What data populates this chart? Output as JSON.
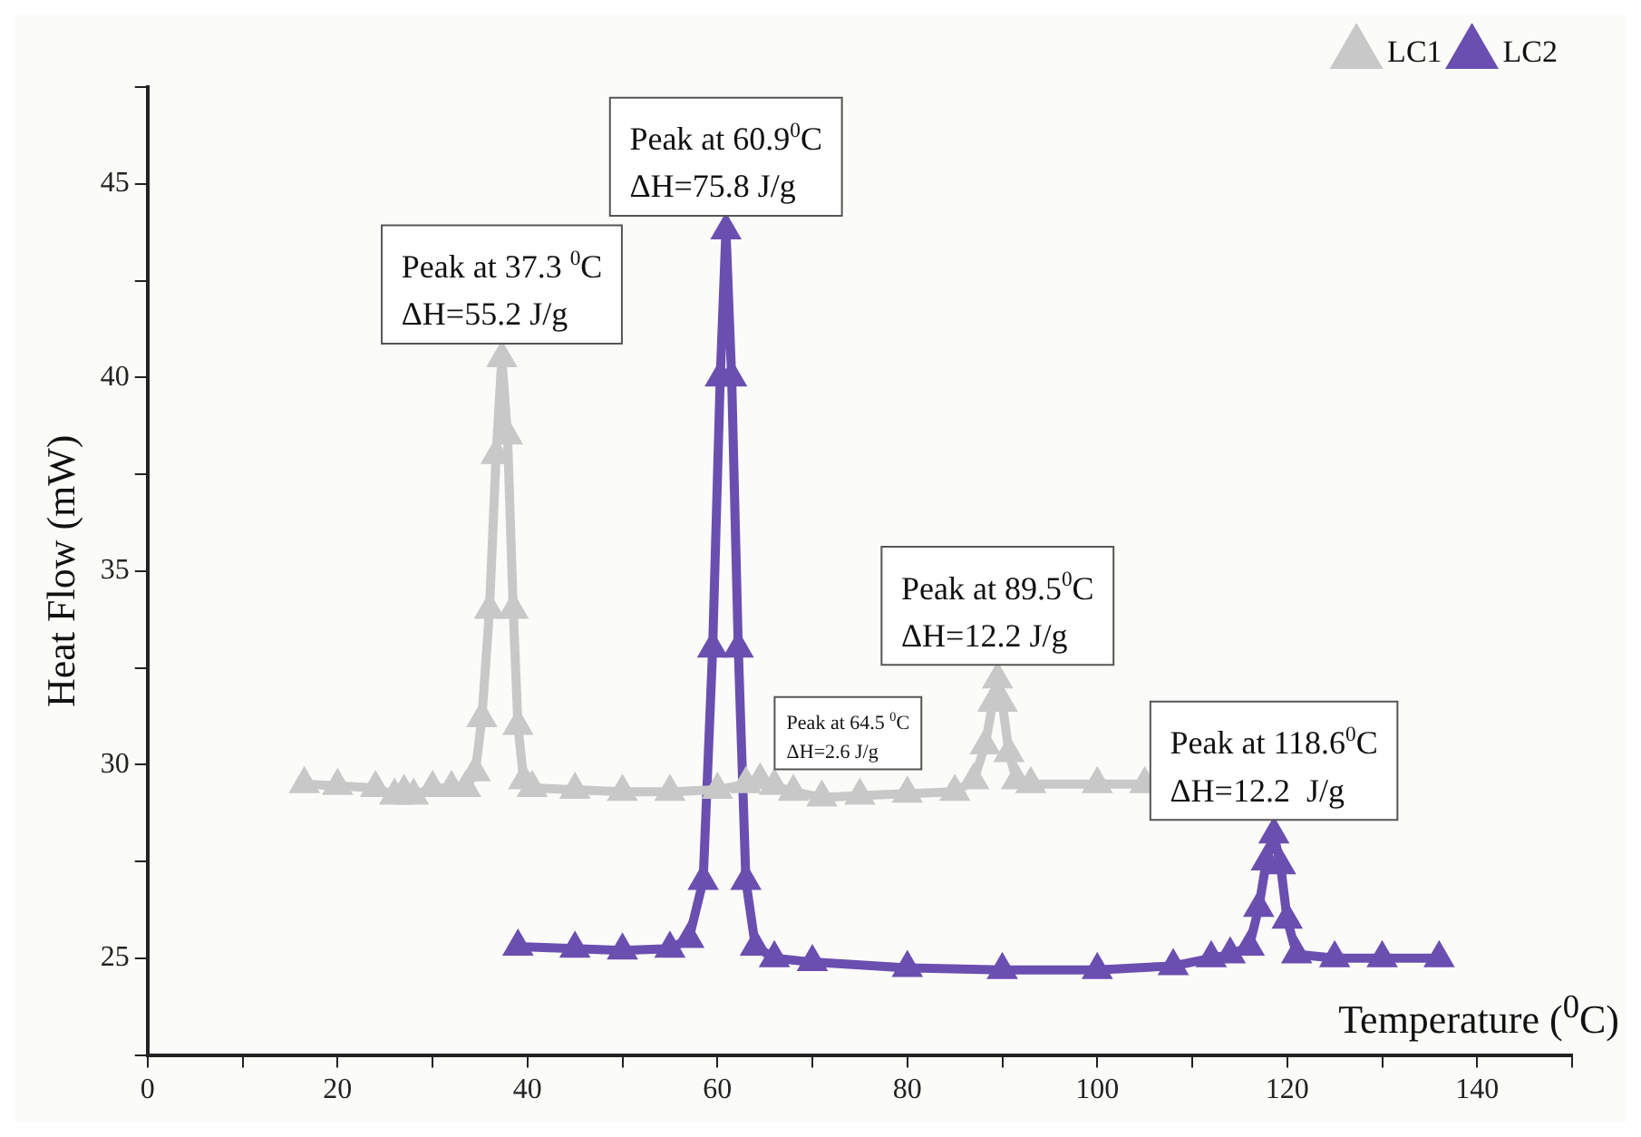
{
  "chart_data": {
    "type": "line",
    "xlabel": "Temperature ($^{0}$C)",
    "ylabel": "Heat Flow (mW)",
    "xlim": [
      0,
      150
    ],
    "ylim": [
      22.5,
      47.5
    ],
    "xticks": [
      0,
      {
        "value": 10,
        "label": null
      },
      20,
      {
        "value": 30,
        "label": null
      },
      40,
      {
        "value": 50,
        "label": null
      },
      60,
      {
        "value": 70,
        "label": null
      },
      80,
      {
        "value": 90,
        "label": null
      },
      100,
      {
        "value": 110,
        "label": null
      },
      120,
      {
        "value": 130,
        "label": null
      },
      140,
      {
        "value": 150,
        "label": null
      }
    ],
    "yticks": [
      {
        "value": 22.5,
        "label": null
      },
      25,
      {
        "value": 27.5,
        "label": null
      },
      30,
      {
        "value": 32.5,
        "label": null
      },
      35,
      {
        "value": 37.5,
        "label": null
      },
      40,
      {
        "value": 42.5,
        "label": null
      },
      45,
      {
        "value": 47.5,
        "label": null
      }
    ],
    "grid": false,
    "legend": "top right",
    "marker": "triangle",
    "line_style": "solid",
    "series": [
      {
        "name": "LC1",
        "color": "#c8c8c8",
        "x": [
          16.5,
          20,
          24,
          26,
          27,
          28,
          30,
          32,
          33.5,
          34.5,
          35.2,
          36,
          36.7,
          37.3,
          37.9,
          38.5,
          39,
          39.6,
          40.5,
          45,
          50,
          55,
          60,
          63,
          64.5,
          66,
          68,
          71,
          75,
          80,
          85,
          87,
          88.2,
          89,
          89.5,
          90,
          90.7,
          91.5,
          93,
          100,
          105
        ],
        "values": [
          29.5,
          29.45,
          29.4,
          29.2,
          29.3,
          29.2,
          29.4,
          29.4,
          29.4,
          29.8,
          31.2,
          34,
          38,
          40.5,
          38.5,
          34,
          31,
          29.6,
          29.4,
          29.35,
          29.3,
          29.3,
          29.35,
          29.5,
          29.6,
          29.45,
          29.3,
          29.15,
          29.2,
          29.25,
          29.3,
          29.6,
          30.5,
          31.6,
          32.2,
          31.6,
          30.3,
          29.6,
          29.5,
          29.5,
          29.5
        ]
      },
      {
        "name": "LC2",
        "color": "#6a4fb0",
        "x": [
          39,
          45,
          50,
          55,
          57,
          58.5,
          59.5,
          60.3,
          60.9,
          61.5,
          62.2,
          63,
          64,
          66,
          70,
          80,
          90,
          100,
          108,
          112,
          114,
          116,
          117,
          117.8,
          118.6,
          119.3,
          120,
          121,
          125,
          130,
          136
        ],
        "values": [
          25.3,
          25.25,
          25.2,
          25.25,
          25.5,
          27,
          33,
          40,
          43.8,
          40,
          33,
          27,
          25.3,
          25,
          24.9,
          24.75,
          24.7,
          24.7,
          24.8,
          25,
          25.1,
          25.3,
          26.3,
          27.5,
          28.2,
          27.4,
          26,
          25.1,
          25,
          25,
          25
        ]
      }
    ],
    "annotations": [
      {
        "text": "Peak at 37.3 $^{0}$C\nΔH=55.2 J/g",
        "x": 37.3,
        "y": 40.5
      },
      {
        "text": "Peak at 60.9$^{0}$C\nΔH=75.8 J/g",
        "x": 60.9,
        "y": 43.8
      },
      {
        "text": "Peak at 64.5 $^{0}$C\nΔH=2.6 J/g",
        "x": 64.5,
        "y": 29.6
      },
      {
        "text": "Peak at 89.5$^{0}$C\nΔH=12.2 J/g",
        "x": 89.5,
        "y": 32.2
      },
      {
        "text": "Peak at 118.6$^{0}$C\nΔH=12.2  J/g",
        "x": 118.6,
        "y": 28.2
      }
    ]
  }
}
